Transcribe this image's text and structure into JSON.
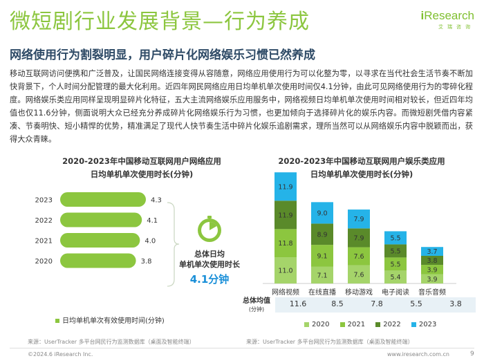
{
  "title": "微短剧行业发展背景—行为养成",
  "logo": {
    "brand": "Research",
    "brand_i": "i",
    "sub": "艾瑞咨询"
  },
  "subtitle": "网络使用行为割裂明显，用户碎片化网络娱乐习惯已然养成",
  "body": "移动互联网访问便携和广泛普及，让国民网络连接变得从容随意，网络应用使用行为可以化整为零，以寻求在当代社会生活节奏不断加快背景下，个人时间分配管理的最大化利用。近四年网民网络应用日均单机单次使用时间仅4.1分钟，由此可见网络使用行为的零碎化程度。网络娱乐类应用同样呈现明显碎片化特征，五大主流网络娱乐应用服务中，网络视频日均单机单次使用时间相对较长，但近四年均值也仅11.6分钟，侧面说明大众已经充分养成碎片化网络娱乐行为习惯，也更加倾向于选择碎片化的娱乐内容。而微短剧凭借内容紧凑、节奏明快、短小精悍的优势，精准满足了现代人快节奏生活中碎片化娱乐追剧需求，理所当然可以从网络娱乐内容中脱颖而出，获得大众青睐。",
  "left_chart": {
    "title_line1": "2020-2023年中国移动互联网用户网络应用",
    "title_line2": "日均单机单次使用时长(分钟)",
    "legend": "日均单机单次有效使用时间(分钟)",
    "summary_label_1": "总体日均",
    "summary_label_2": "单机单次使用时长",
    "summary_value": "4.1分钟",
    "source": "来源：UserTracker 多平台网民行为监测数据库（桌面及智能终端）"
  },
  "right_chart": {
    "title_line1": "2020-2023年中国移动互联网用户娱乐类应用",
    "title_line2": "日均单机单次使用时长(分钟)",
    "avg_label": "总体均值",
    "avg_unit": "(分钟)",
    "averages": [
      "11.6",
      "8.5",
      "7.8",
      "5.5",
      "3.8"
    ],
    "source": "来源：UserTracker 多平台网民行为监测数据库（桌面及智能终端）"
  },
  "footer": {
    "copyright": "©2024.6 iResearch Inc.",
    "website": "www.iresearch.com.cn",
    "page": "9"
  },
  "colors": {
    "accent_green": "#8cc63f",
    "s2020": "#a5d46a",
    "s2021": "#8cc63f",
    "s2022": "#5a8a2a",
    "s2023": "#25b3e8",
    "value_blue": "#1a8fd8"
  },
  "chart_data": [
    {
      "type": "bar",
      "orientation": "horizontal",
      "title": "2020-2023年中国移动互联网用户网络应用日均单机单次使用时长(分钟)",
      "categories": [
        "2023",
        "2022",
        "2021",
        "2020"
      ],
      "values": [
        4.3,
        4.1,
        4.0,
        3.8
      ],
      "series": [
        {
          "name": "日均单机单次有效使用时间(分钟)",
          "values": [
            4.3,
            4.1,
            4.0,
            3.8
          ]
        }
      ],
      "xlim": [
        0,
        4.3
      ],
      "legend": "bottom"
    },
    {
      "type": "bar",
      "stacked": true,
      "title": "2020-2023年中国移动互联网用户娱乐类应用日均单机单次使用时长(分钟)",
      "categories": [
        "网络视频",
        "在线直播",
        "移动游戏",
        "电子阅读",
        "音乐音频"
      ],
      "series": [
        {
          "name": "2020",
          "values": [
            11.0,
            7.1,
            7.6,
            5.4,
            3.9
          ]
        },
        {
          "name": "2021",
          "values": [
            11.8,
            9.1,
            7.6,
            5.5,
            3.9
          ]
        },
        {
          "name": "2022",
          "values": [
            11.9,
            8.9,
            7.9,
            5.5,
            3.8
          ]
        },
        {
          "name": "2023",
          "values": [
            11.9,
            9.0,
            7.9,
            5.5,
            3.7
          ]
        }
      ],
      "legend": "bottom"
    }
  ]
}
